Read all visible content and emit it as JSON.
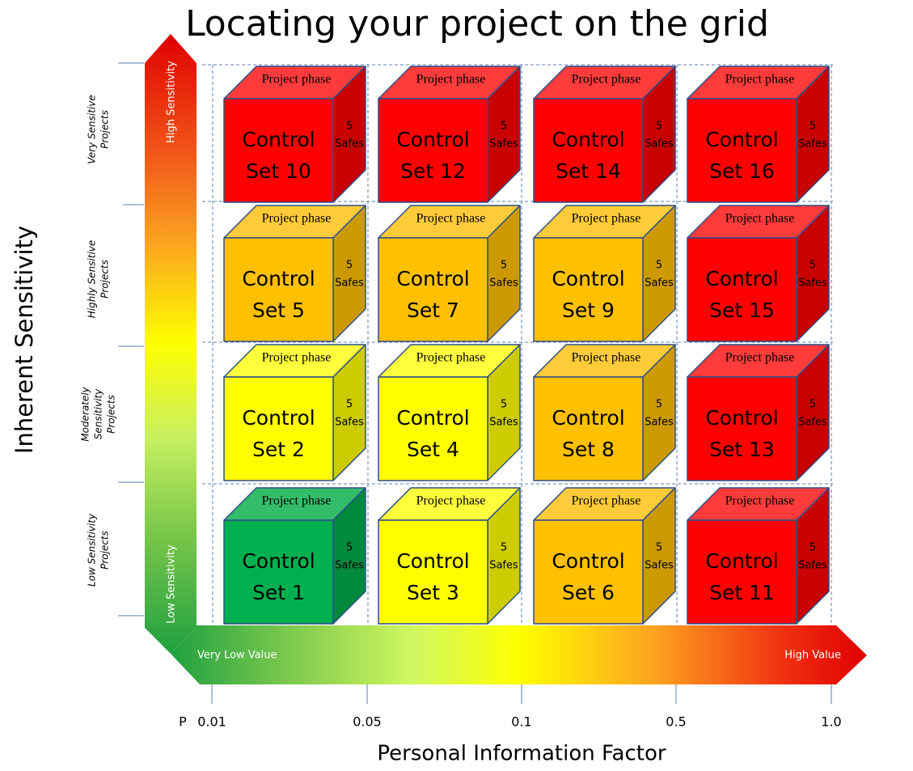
{
  "title": "Locating your project on the grid",
  "y_axis_label": "Inherent Sensitivity",
  "x_axis_label": "Personal Information Factor",
  "vertical_arrow": {
    "top_label": "High Sensitivity",
    "bottom_label": "Low Sensitivity"
  },
  "horizontal_arrow": {
    "left_label": "Very Low Value",
    "right_label": "High Value"
  },
  "x_prefix": "P",
  "x_ticks": [
    "0.01",
    "0.05",
    "0.1",
    "0.5",
    "1.0"
  ],
  "row_labels": [
    [
      "Very Sensitive",
      "Projects"
    ],
    [
      "Highly Sensitive",
      "Projects"
    ],
    [
      "Moderately",
      "Sensitivity",
      "Projects"
    ],
    [
      "Low Sensitivity",
      "Projects"
    ]
  ],
  "palette": {
    "red": {
      "front": "#ff0000",
      "top": "#ff3b3b",
      "side": "#c80000"
    },
    "orange": {
      "front": "#ffc000",
      "top": "#ffcb38",
      "side": "#cc9a00"
    },
    "yellow": {
      "front": "#ffff00",
      "top": "#ffff3c",
      "side": "#cccc00"
    },
    "green": {
      "front": "#00b050",
      "top": "#33bd6a",
      "side": "#008a3e"
    }
  },
  "rows": [
    [
      {
        "phase": "Project phase",
        "label": [
          "Control",
          "Set 10"
        ],
        "safes": [
          "5",
          "Safes"
        ],
        "color": "red"
      },
      {
        "phase": "Project phase",
        "label": [
          "Control",
          "Set 12"
        ],
        "safes": [
          "5",
          "Safes"
        ],
        "color": "red"
      },
      {
        "phase": "Project phase",
        "label": [
          "Control",
          "Set 14"
        ],
        "safes": [
          "5",
          "Safes"
        ],
        "color": "red"
      },
      {
        "phase": "Project phase",
        "label": [
          "Control",
          "Set 16"
        ],
        "safes": [
          "5",
          "Safes"
        ],
        "color": "red"
      }
    ],
    [
      {
        "phase": "Project phase",
        "label": [
          "Control",
          "Set 5"
        ],
        "safes": [
          "5",
          "Safes"
        ],
        "color": "orange"
      },
      {
        "phase": "Project phase",
        "label": [
          "Control",
          "Set 7"
        ],
        "safes": [
          "5",
          "Safes"
        ],
        "color": "orange"
      },
      {
        "phase": "Project phase",
        "label": [
          "Control",
          "Set 9"
        ],
        "safes": [
          "5",
          "Safes"
        ],
        "color": "orange"
      },
      {
        "phase": "Project phase",
        "label": [
          "Control",
          "Set 15"
        ],
        "safes": [
          "5",
          "Safes"
        ],
        "color": "red"
      }
    ],
    [
      {
        "phase": "Project phase",
        "label": [
          "Control",
          "Set 2"
        ],
        "safes": [
          "5",
          "Safes"
        ],
        "color": "yellow"
      },
      {
        "phase": "Project phase",
        "label": [
          "Control",
          "Set 4"
        ],
        "safes": [
          "5",
          "Safes"
        ],
        "color": "yellow"
      },
      {
        "phase": "Project phase",
        "label": [
          "Control",
          "Set 8"
        ],
        "safes": [
          "5",
          "Safes"
        ],
        "color": "orange"
      },
      {
        "phase": "Project phase",
        "label": [
          "Control",
          "Set 13"
        ],
        "safes": [
          "5",
          "Safes"
        ],
        "color": "red"
      }
    ],
    [
      {
        "phase": "Project phase",
        "label": [
          "Control",
          "Set 1"
        ],
        "safes": [
          "5",
          "Safes"
        ],
        "color": "green"
      },
      {
        "phase": "Project phase",
        "label": [
          "Control",
          "Set 3"
        ],
        "safes": [
          "5",
          "Safes"
        ],
        "color": "yellow"
      },
      {
        "phase": "Project phase",
        "label": [
          "Control",
          "Set 6"
        ],
        "safes": [
          "5",
          "Safes"
        ],
        "color": "orange"
      },
      {
        "phase": "Project phase",
        "label": [
          "Control",
          "Set 11"
        ],
        "safes": [
          "5",
          "Safes"
        ],
        "color": "red"
      }
    ]
  ]
}
